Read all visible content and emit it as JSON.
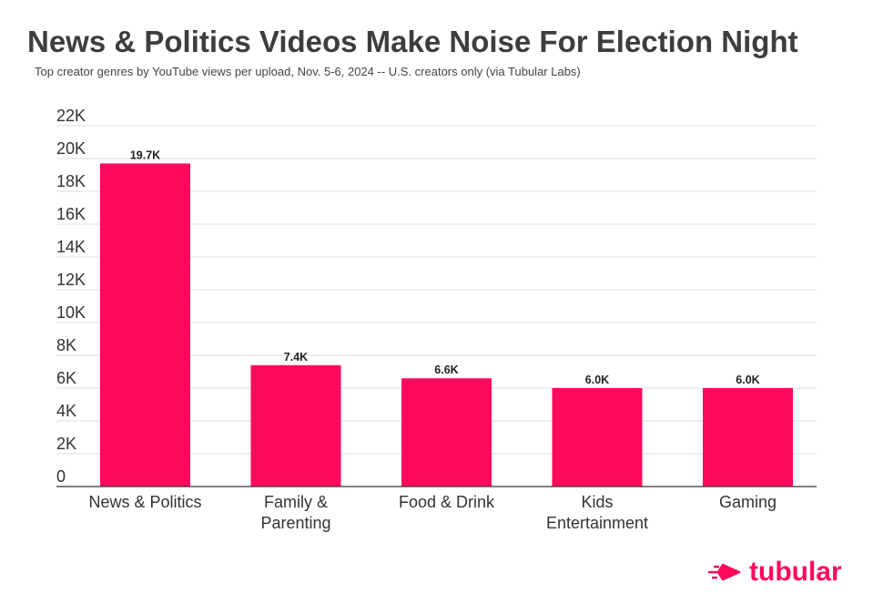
{
  "colors": {
    "bar": "#ff0a5a",
    "brand": "#ff0a5a",
    "title": "#3d3d3d",
    "grid": "#dedede"
  },
  "chart_data": {
    "type": "bar",
    "title": "News & Politics Videos Make Noise For Election Night",
    "subtitle": "Top creator genres by YouTube views per upload, Nov. 5-6, 2024 -- U.S. creators only (via Tubular Labs)",
    "xlabel": "",
    "ylabel": "",
    "categories": [
      [
        "News & Politics"
      ],
      [
        "Family &",
        "Parenting"
      ],
      [
        "Food & Drink"
      ],
      [
        "Kids",
        "Entertainment"
      ],
      [
        "Gaming"
      ]
    ],
    "values": [
      19700,
      7400,
      6600,
      6000,
      6000
    ],
    "data_labels": [
      "19.7K",
      "7.4K",
      "6.6K",
      "6.0K",
      "6.0K"
    ],
    "ylim": [
      0,
      22000
    ],
    "yticks": [
      0,
      2000,
      4000,
      6000,
      8000,
      10000,
      12000,
      14000,
      16000,
      18000,
      20000,
      22000
    ],
    "ytick_labels": [
      "0",
      "2K",
      "4K",
      "6K",
      "8K",
      "10K",
      "12K",
      "14K",
      "16K",
      "18K",
      "20K",
      "22K"
    ],
    "grid": true,
    "legend": "none"
  },
  "logo": {
    "text": "tubular",
    "icon": "arrow-right-icon"
  }
}
